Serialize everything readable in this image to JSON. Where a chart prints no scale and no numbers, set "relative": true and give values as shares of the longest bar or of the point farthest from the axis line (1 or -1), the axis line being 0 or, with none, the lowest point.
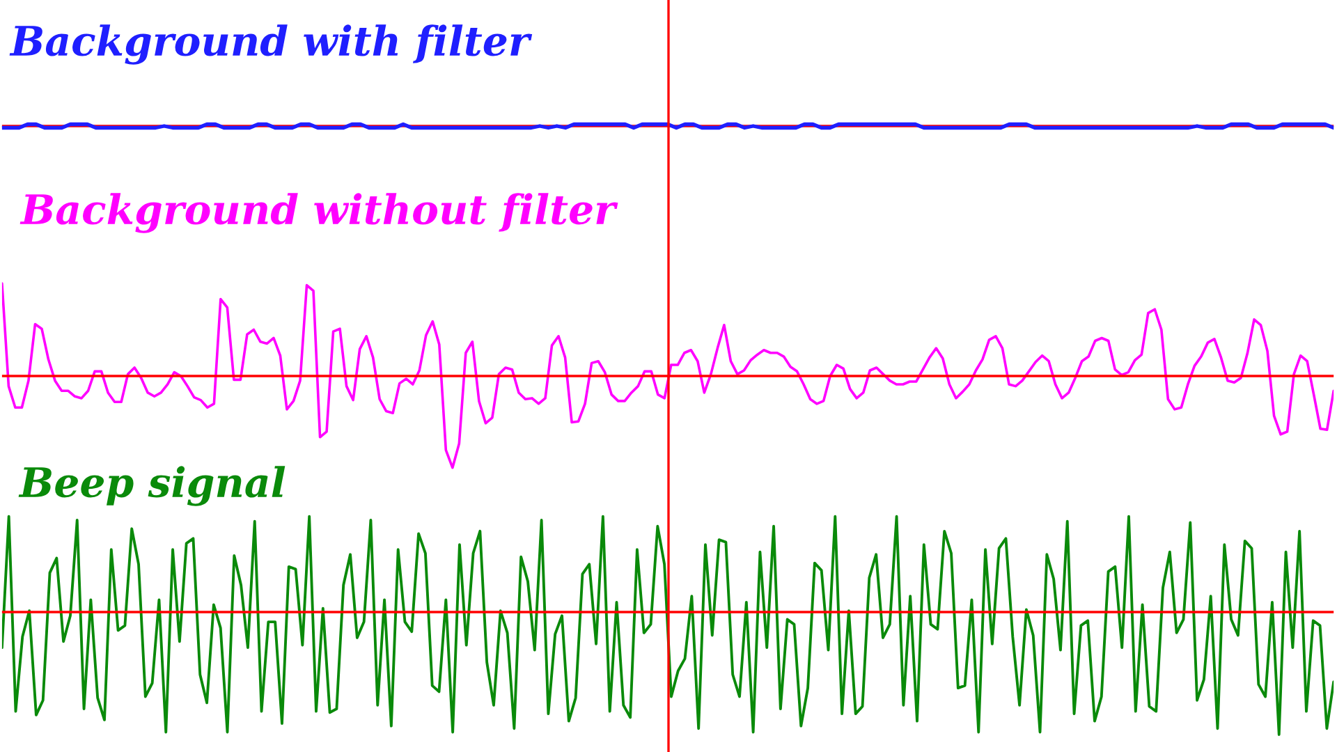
{
  "chart_data": [
    {
      "type": "line",
      "relative": true,
      "title": "Background with filter",
      "categories": [
        null,
        null,
        null,
        null,
        null,
        null,
        null,
        null,
        null,
        null,
        null,
        null,
        null,
        null,
        null,
        null,
        null,
        null,
        null,
        null,
        null,
        null,
        null,
        null,
        null,
        null,
        null,
        null,
        null,
        null,
        null,
        null,
        null,
        null,
        null,
        null,
        null,
        null,
        null,
        null,
        null,
        null,
        null,
        null,
        null,
        null,
        null,
        null,
        null,
        null,
        null,
        null,
        null,
        null,
        null,
        null,
        null,
        null,
        null,
        null,
        null,
        null,
        null,
        null,
        null,
        null,
        null,
        null,
        null,
        null,
        null,
        null,
        null,
        null,
        null,
        null,
        null,
        null,
        null,
        null,
        null,
        null,
        null,
        null,
        null,
        null,
        null,
        null,
        null,
        null,
        null,
        null,
        null,
        null,
        null,
        null,
        null,
        null,
        null,
        null,
        null,
        null,
        null,
        null,
        null,
        null,
        null,
        null,
        null,
        null,
        null,
        null,
        null,
        null,
        null,
        null,
        null,
        null,
        null,
        null,
        null,
        null,
        null,
        null,
        null,
        null,
        null,
        null,
        null,
        null,
        null,
        null,
        null,
        null,
        null,
        null,
        null,
        null,
        null,
        null,
        null,
        null,
        null,
        null,
        null,
        null,
        null,
        null,
        null,
        null,
        null,
        null,
        null,
        null,
        null,
        null,
        null
      ],
      "series": [
        {
          "color": "#1f1fff",
          "values": [
            -1,
            -1,
            -1,
            1,
            1,
            -1,
            -1,
            -1,
            1,
            1,
            1,
            -1,
            -1,
            -1,
            -1,
            -1,
            -1,
            -1,
            -1,
            0,
            -1,
            -1,
            -1,
            -1,
            1,
            1,
            -1,
            -1,
            -1,
            -1,
            1,
            1,
            -1,
            -1,
            -1,
            1,
            1,
            -1,
            -1,
            -1,
            -1,
            1,
            1,
            -1,
            -1,
            -1,
            -1,
            1,
            -1,
            -1,
            -1,
            -1,
            -1,
            -1,
            -1,
            -1,
            -1,
            -1,
            -1,
            -1,
            -1,
            -1,
            -1,
            0,
            -1,
            0,
            -1,
            1,
            1,
            1,
            1,
            1,
            1,
            1,
            -1,
            1,
            1,
            1,
            1,
            -1,
            1,
            1,
            -1,
            -1,
            -1,
            1,
            1,
            -1,
            0,
            -1,
            -1,
            -1,
            -1,
            -1,
            1,
            1,
            -1,
            -1,
            1,
            1,
            1,
            1,
            1,
            1,
            1,
            1,
            1,
            1,
            -1,
            -1,
            -1,
            -1,
            -1,
            -1,
            -1,
            -1,
            -1,
            -1,
            1,
            1,
            1,
            -1,
            -1,
            -1,
            -1,
            -1,
            -1,
            -1,
            -1,
            -1,
            -1,
            -1,
            -1,
            -1,
            -1,
            -1,
            -1,
            -1,
            -1,
            -1,
            0,
            -1,
            -1,
            -1,
            1,
            1,
            1,
            -1,
            -1,
            -1,
            1,
            1,
            1,
            1,
            1,
            1,
            -1
          ]
        }
      ],
      "ref_lines": [
        {
          "axis": "y",
          "value": 0,
          "color": "#ff0000"
        }
      ]
    },
    {
      "type": "line",
      "relative": true,
      "title": "Background without filter",
      "categories": [
        null,
        null,
        null,
        null,
        null,
        null,
        null,
        null,
        null,
        null,
        null,
        null,
        null,
        null,
        null,
        null,
        null,
        null,
        null,
        null,
        null,
        null,
        null,
        null,
        null,
        null,
        null,
        null,
        null,
        null,
        null,
        null,
        null,
        null,
        null,
        null,
        null,
        null,
        null,
        null,
        null,
        null,
        null,
        null,
        null,
        null,
        null,
        null,
        null,
        null,
        null,
        null,
        null,
        null,
        null,
        null,
        null,
        null,
        null,
        null,
        null,
        null,
        null,
        null,
        null,
        null,
        null,
        null,
        null,
        null,
        null,
        null,
        null,
        null,
        null,
        null,
        null,
        null,
        null,
        null,
        null,
        null,
        null,
        null,
        null,
        null,
        null,
        null,
        null,
        null,
        null,
        null,
        null,
        null,
        null,
        null,
        null,
        null,
        null,
        null,
        null,
        null,
        null,
        null,
        null,
        null,
        null,
        null,
        null,
        null,
        null,
        null,
        null,
        null,
        null,
        null,
        null,
        null,
        null,
        null,
        null,
        null,
        null,
        null,
        null,
        null,
        null,
        null,
        null,
        null,
        null,
        null,
        null,
        null,
        null,
        null,
        null,
        null,
        null,
        null,
        null,
        null,
        null,
        null,
        null,
        null,
        null,
        null,
        null,
        null,
        null,
        null,
        null,
        null,
        null,
        null,
        null,
        null,
        null,
        null,
        null,
        null,
        null,
        null,
        null,
        null,
        null,
        null,
        null,
        null,
        null,
        null,
        null,
        null,
        null,
        null,
        null,
        null,
        null,
        null,
        null,
        null,
        null,
        null,
        null,
        null,
        null,
        null,
        null,
        null,
        null,
        null,
        null,
        null,
        null,
        null,
        null,
        null,
        null,
        null,
        null,
        null
      ],
      "series": [
        {
          "color": "#ff00ff",
          "values": [
            1.0,
            -0.11,
            -0.34,
            -0.34,
            -0.05,
            0.56,
            0.51,
            0.18,
            -0.05,
            -0.16,
            -0.16,
            -0.22,
            -0.24,
            -0.16,
            0.05,
            0.05,
            -0.18,
            -0.28,
            -0.28,
            0.02,
            0.09,
            -0.02,
            -0.18,
            -0.22,
            -0.18,
            -0.09,
            0.04,
            0.0,
            -0.11,
            -0.23,
            -0.26,
            -0.34,
            -0.3,
            0.83,
            0.74,
            -0.04,
            -0.04,
            0.45,
            0.5,
            0.37,
            0.35,
            0.41,
            0.22,
            -0.36,
            -0.27,
            -0.05,
            0.98,
            0.92,
            -0.66,
            -0.6,
            0.48,
            0.51,
            -0.11,
            -0.26,
            0.29,
            0.43,
            0.2,
            -0.25,
            -0.38,
            -0.4,
            -0.08,
            -0.03,
            -0.09,
            0.06,
            0.44,
            0.59,
            0.34,
            -0.8,
            -0.99,
            -0.73,
            0.25,
            0.37,
            -0.27,
            -0.51,
            -0.45,
            0.02,
            0.09,
            0.07,
            -0.18,
            -0.25,
            -0.24,
            -0.3,
            -0.24,
            0.33,
            0.43,
            0.2,
            -0.5,
            -0.49,
            -0.3,
            0.14,
            0.16,
            0.04,
            -0.2,
            -0.27,
            -0.27,
            -0.18,
            -0.11,
            0.05,
            0.05,
            -0.2,
            -0.24,
            0.12,
            0.12,
            0.25,
            0.28,
            0.16,
            -0.18,
            0.02,
            0.3,
            0.55,
            0.16,
            0.02,
            0.06,
            0.17,
            0.23,
            0.28,
            0.25,
            0.25,
            0.21,
            0.1,
            0.05,
            -0.09,
            -0.25,
            -0.3,
            -0.27,
            0.0,
            0.12,
            0.08,
            -0.14,
            -0.24,
            -0.18,
            0.06,
            0.09,
            0.02,
            -0.05,
            -0.09,
            -0.09,
            -0.06,
            -0.06,
            0.07,
            0.2,
            0.3,
            0.19,
            -0.09,
            -0.24,
            -0.17,
            -0.09,
            0.06,
            0.18,
            0.39,
            0.43,
            0.3,
            -0.09,
            -0.11,
            -0.05,
            0.05,
            0.15,
            0.22,
            0.16,
            -0.09,
            -0.24,
            -0.18,
            -0.02,
            0.16,
            0.21,
            0.38,
            0.41,
            0.38,
            0.07,
            0.01,
            0.04,
            0.17,
            0.23,
            0.68,
            0.72,
            0.5,
            -0.25,
            -0.36,
            -0.34,
            -0.09,
            0.11,
            0.21,
            0.36,
            0.4,
            0.2,
            -0.05,
            -0.07,
            -0.02,
            0.25,
            0.61,
            0.55,
            0.27,
            -0.43,
            -0.63,
            -0.6,
            0.02,
            0.22,
            0.16,
            -0.2,
            -0.57,
            -0.58,
            -0.16
          ]
        }
      ],
      "ref_lines": [
        {
          "axis": "y",
          "value": 0,
          "color": "#ff0000"
        }
      ]
    },
    {
      "type": "line",
      "relative": true,
      "title": "Beep signal",
      "categories": [
        null,
        null,
        null,
        null,
        null,
        null,
        null,
        null,
        null,
        null,
        null,
        null,
        null,
        null,
        null,
        null,
        null,
        null,
        null,
        null,
        null,
        null,
        null,
        null,
        null,
        null,
        null,
        null,
        null,
        null,
        null,
        null,
        null,
        null,
        null,
        null,
        null,
        null,
        null,
        null,
        null,
        null,
        null,
        null,
        null,
        null,
        null,
        null,
        null,
        null,
        null,
        null,
        null,
        null,
        null,
        null,
        null,
        null,
        null,
        null,
        null,
        null,
        null,
        null,
        null,
        null,
        null,
        null,
        null,
        null,
        null,
        null,
        null,
        null,
        null,
        null,
        null,
        null,
        null,
        null,
        null,
        null,
        null,
        null,
        null,
        null,
        null,
        null,
        null,
        null,
        null,
        null,
        null,
        null,
        null,
        null,
        null,
        null,
        null,
        null,
        null,
        null,
        null,
        null,
        null,
        null,
        null,
        null,
        null,
        null,
        null,
        null,
        null,
        null,
        null,
        null,
        null,
        null,
        null,
        null,
        null,
        null,
        null,
        null,
        null,
        null,
        null,
        null,
        null,
        null,
        null,
        null,
        null,
        null,
        null,
        null,
        null,
        null,
        null,
        null,
        null,
        null,
        null,
        null,
        null,
        null,
        null,
        null,
        null,
        null,
        null,
        null,
        null,
        null,
        null,
        null,
        null,
        null,
        null,
        null,
        null,
        null,
        null,
        null,
        null,
        null,
        null,
        null,
        null,
        null,
        null,
        null,
        null,
        null,
        null,
        null,
        null,
        null,
        null,
        null,
        null,
        null,
        null,
        null,
        null,
        null,
        null,
        null,
        null,
        null,
        null,
        null,
        null,
        null,
        null,
        null
      ],
      "series": [
        {
          "color": "#0a8a0a",
          "values": [
            -0.29,
            0.78,
            -0.81,
            -0.2,
            0.01,
            -0.84,
            -0.72,
            0.32,
            0.44,
            -0.24,
            -0.03,
            0.75,
            -0.79,
            0.1,
            -0.7,
            -0.88,
            0.51,
            -0.15,
            -0.11,
            0.68,
            0.39,
            -0.69,
            -0.58,
            0.1,
            -0.98,
            0.51,
            -0.24,
            0.56,
            0.6,
            -0.51,
            -0.74,
            0.06,
            -0.13,
            -0.98,
            0.46,
            0.22,
            -0.29,
            0.74,
            -0.81,
            -0.08,
            -0.08,
            -0.91,
            0.37,
            0.35,
            -0.27,
            0.78,
            -0.81,
            0.03,
            -0.82,
            -0.79,
            0.22,
            0.47,
            -0.21,
            -0.08,
            0.75,
            -0.76,
            0.1,
            -0.93,
            0.51,
            -0.08,
            -0.16,
            0.64,
            0.48,
            -0.6,
            -0.65,
            0.1,
            -0.98,
            0.55,
            -0.27,
            0.48,
            0.66,
            -0.41,
            -0.76,
            0.01,
            -0.17,
            -0.95,
            0.45,
            0.25,
            -0.31,
            0.75,
            -0.83,
            -0.18,
            -0.03,
            -0.89,
            -0.7,
            0.31,
            0.39,
            -0.26,
            0.78,
            -0.81,
            0.08,
            -0.76,
            -0.86,
            0.51,
            -0.17,
            -0.1,
            0.7,
            0.39,
            -0.69,
            -0.48,
            -0.38,
            0.13,
            -0.95,
            0.55,
            -0.19,
            0.59,
            0.57,
            -0.51,
            -0.69,
            0.08,
            -0.98,
            0.49,
            -0.29,
            0.7,
            -0.79,
            -0.06,
            -0.1,
            -0.93,
            -0.62,
            0.4,
            0.34,
            -0.31,
            0.78,
            -0.83,
            0.01,
            -0.83,
            -0.77,
            0.28,
            0.47,
            -0.21,
            -0.1,
            0.78,
            -0.76,
            0.13,
            -0.89,
            0.55,
            -0.1,
            -0.14,
            0.66,
            0.48,
            -0.62,
            -0.6,
            0.1,
            -0.98,
            0.51,
            -0.26,
            0.52,
            0.6,
            -0.2,
            -0.76,
            0.02,
            -0.19,
            -0.98,
            0.47,
            0.27,
            -0.31,
            0.74,
            -0.83,
            -0.11,
            -0.07,
            -0.89,
            -0.69,
            0.33,
            0.37,
            -0.29,
            0.78,
            -0.81,
            0.06,
            -0.77,
            -0.81,
            0.2,
            0.49,
            -0.17,
            -0.06,
            0.73,
            -0.72,
            -0.55,
            0.13,
            -0.95,
            0.55,
            -0.06,
            -0.19,
            0.58,
            0.52,
            -0.59,
            -0.69,
            0.08,
            -1,
            0.49,
            -0.29,
            0.66,
            -0.81,
            -0.07,
            -0.11,
            -0.95,
            -0.57
          ]
        }
      ],
      "ref_lines": [
        {
          "axis": "y",
          "value": 0,
          "color": "#ff0000"
        }
      ]
    }
  ]
}
